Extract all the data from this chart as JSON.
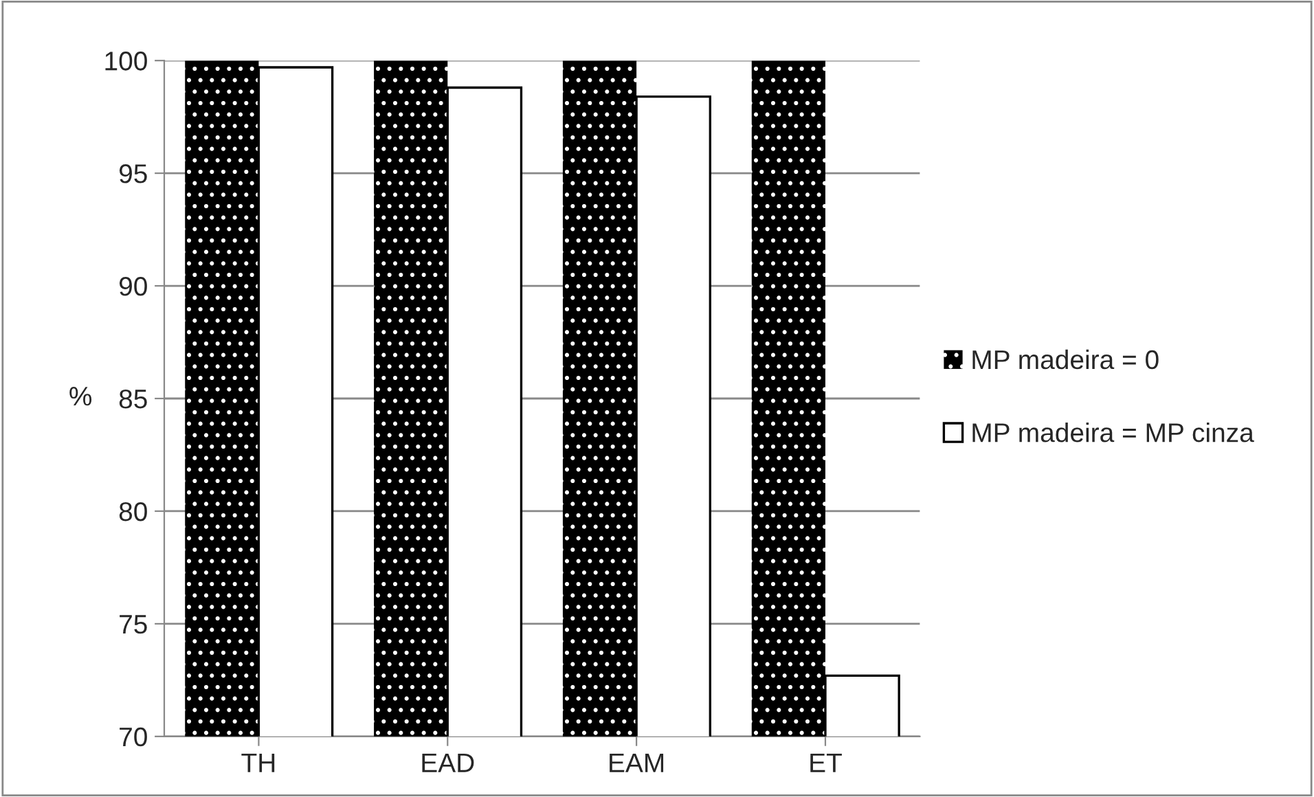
{
  "chart_data": {
    "type": "bar",
    "ylabel": "%",
    "categories": [
      "TH",
      "EAD",
      "EAM",
      "ET"
    ],
    "series": [
      {
        "name": "MP madeira = 0",
        "color": "#000000",
        "values": [
          100,
          100,
          100,
          100
        ]
      },
      {
        "name": "MP madeira = MP cinza",
        "color": "#ffffff",
        "values": [
          99.7,
          98.8,
          98.4,
          72.7
        ]
      }
    ],
    "ylim": [
      70,
      100
    ],
    "yticks": [
      70,
      75,
      80,
      85,
      90,
      95,
      100
    ],
    "grid": "y",
    "legend": "right"
  }
}
